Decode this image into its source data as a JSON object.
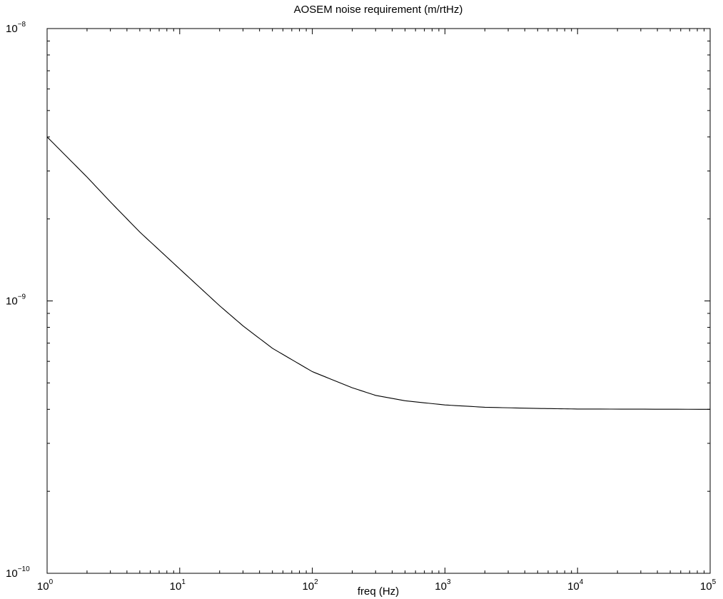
{
  "chart_data": {
    "type": "line",
    "title": "AOSEM noise requirement (m/rtHz)",
    "xlabel": "freq (Hz)",
    "ylabel": "",
    "xscale": "log",
    "yscale": "log",
    "xlim": [
      1,
      100000
    ],
    "ylim": [
      1e-10,
      1e-08
    ],
    "grid": false,
    "x_ticks": [
      {
        "value": 1,
        "base": "10",
        "exp": "0"
      },
      {
        "value": 10,
        "base": "10",
        "exp": "1"
      },
      {
        "value": 100,
        "base": "10",
        "exp": "2"
      },
      {
        "value": 1000,
        "base": "10",
        "exp": "3"
      },
      {
        "value": 10000,
        "base": "10",
        "exp": "4"
      },
      {
        "value": 100000,
        "base": "10",
        "exp": "5"
      }
    ],
    "y_ticks": [
      {
        "value": 1e-10,
        "base": "10",
        "exp": "−10"
      },
      {
        "value": 1e-09,
        "base": "10",
        "exp": "−9"
      },
      {
        "value": 1e-08,
        "base": "10",
        "exp": "−8"
      }
    ],
    "series": [
      {
        "color": "#000000",
        "x": [
          1,
          2,
          3,
          5,
          10,
          20,
          30,
          50,
          100,
          200,
          300,
          500,
          1000,
          2000,
          5000,
          10000,
          100000
        ],
        "y": [
          4e-09,
          2.85e-09,
          2.31e-09,
          1.79e-09,
          1.31e-09,
          9.6e-10,
          8.1e-10,
          6.7e-10,
          5.5e-10,
          4.8e-10,
          4.5e-10,
          4.3e-10,
          4.15e-10,
          4.07e-10,
          4.03e-10,
          4.01e-10,
          4e-10
        ]
      }
    ]
  }
}
